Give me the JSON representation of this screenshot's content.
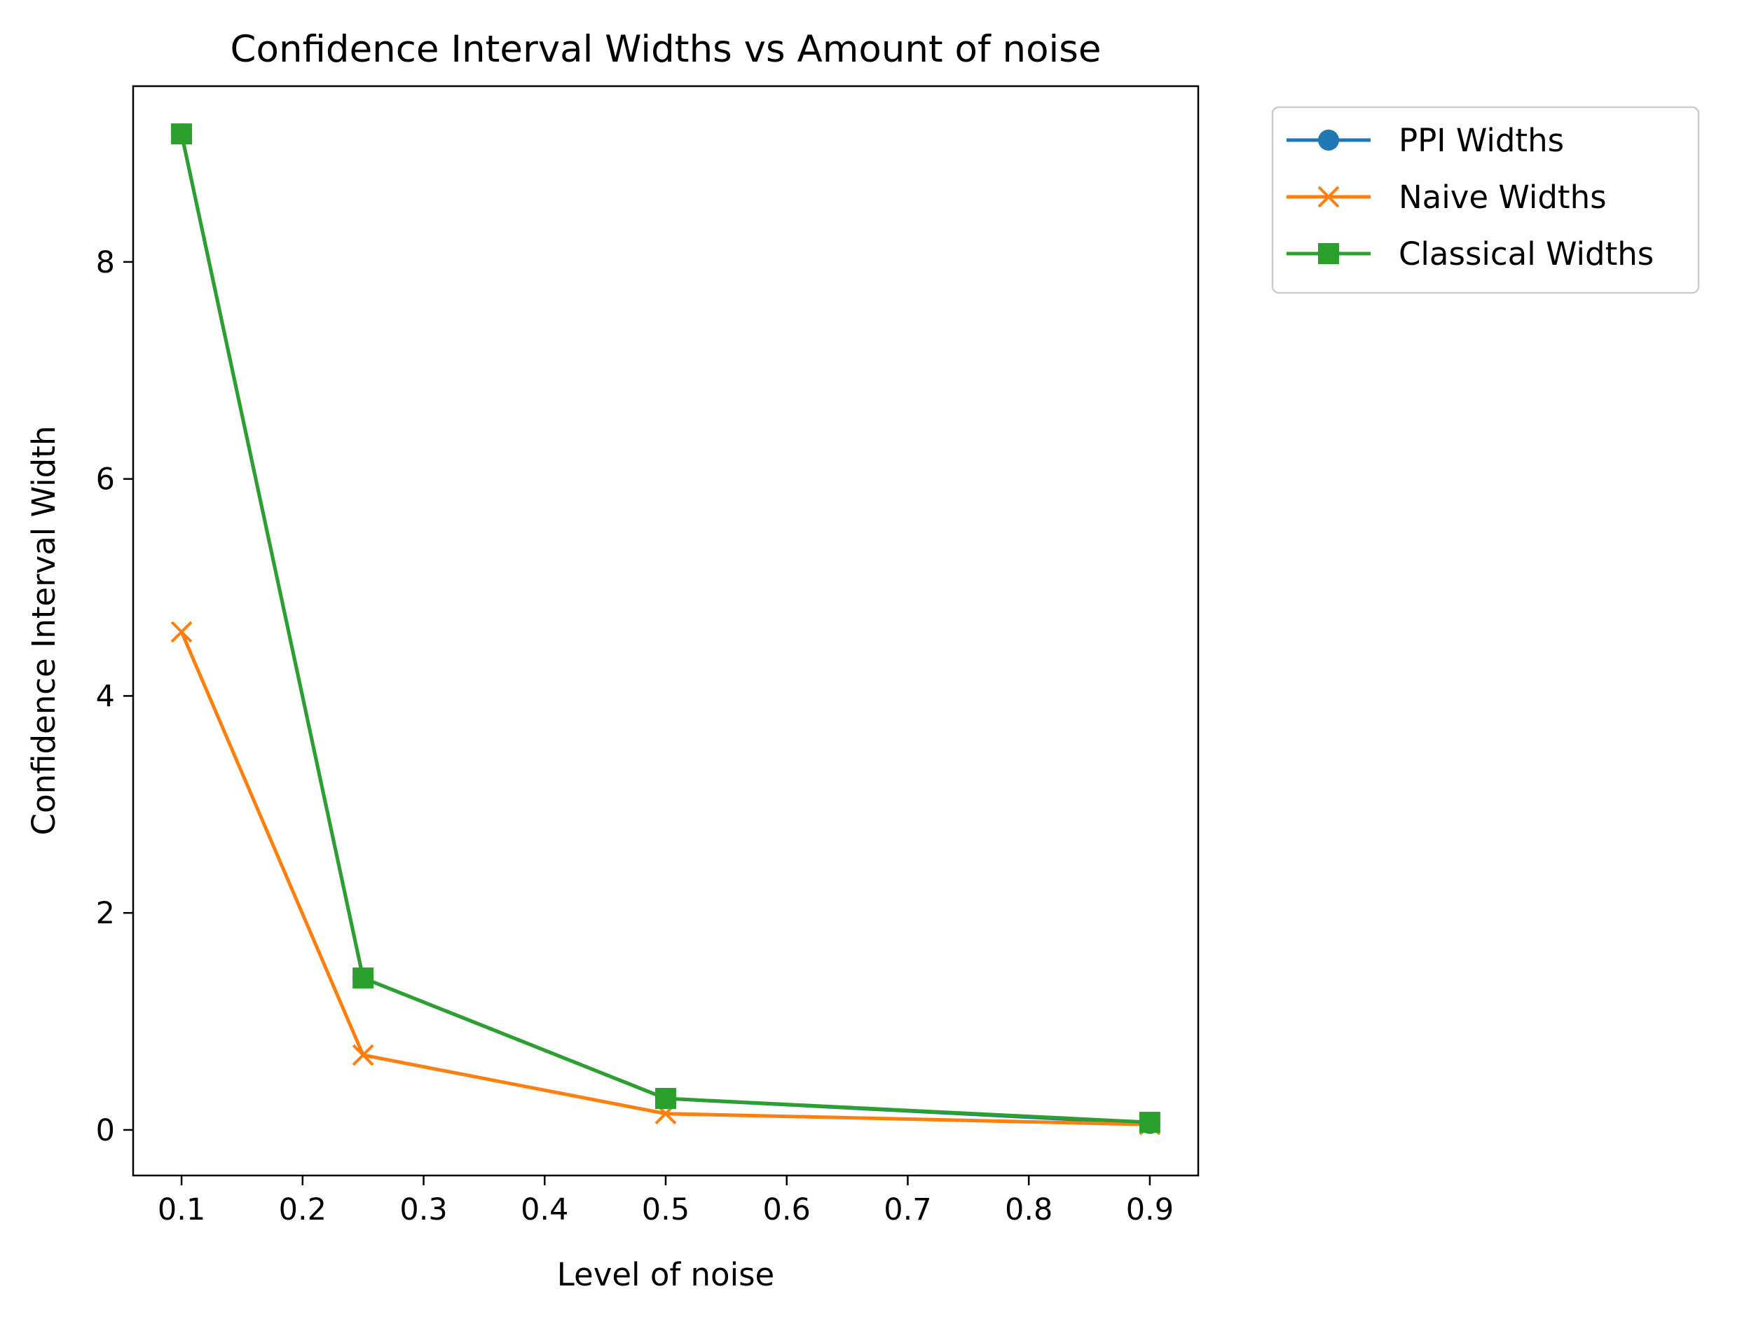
{
  "chart_data": {
    "type": "line",
    "title": "Confidence Interval Widths vs Amount of noise",
    "xlabel": "Level of noise",
    "ylabel": "Confidence Interval Width",
    "xlim": [
      0.06,
      0.94
    ],
    "ylim": [
      -0.42,
      9.62
    ],
    "xticks": [
      0.1,
      0.2,
      0.3,
      0.4,
      0.5,
      0.6,
      0.7,
      0.8,
      0.9
    ],
    "xtick_labels": [
      "0.1",
      "0.2",
      "0.3",
      "0.4",
      "0.5",
      "0.6",
      "0.7",
      "0.8",
      "0.9"
    ],
    "yticks": [
      0,
      2,
      4,
      6,
      8
    ],
    "ytick_labels": [
      "0",
      "2",
      "4",
      "6",
      "8"
    ],
    "grid": false,
    "legend_placement": "outside-upper-right",
    "x": [
      0.1,
      0.25,
      0.5,
      0.9
    ],
    "series": [
      {
        "name": "PPI Widths",
        "values": [
          9.18,
          1.4,
          0.29,
          0.06
        ],
        "color": "#1f77b4",
        "marker": "circle"
      },
      {
        "name": "Naive Widths",
        "values": [
          4.59,
          0.69,
          0.15,
          0.05
        ],
        "color": "#ff7f0e",
        "marker": "x"
      },
      {
        "name": "Classical Widths",
        "values": [
          9.18,
          1.4,
          0.29,
          0.07
        ],
        "color": "#2ca02c",
        "marker": "square"
      }
    ]
  }
}
